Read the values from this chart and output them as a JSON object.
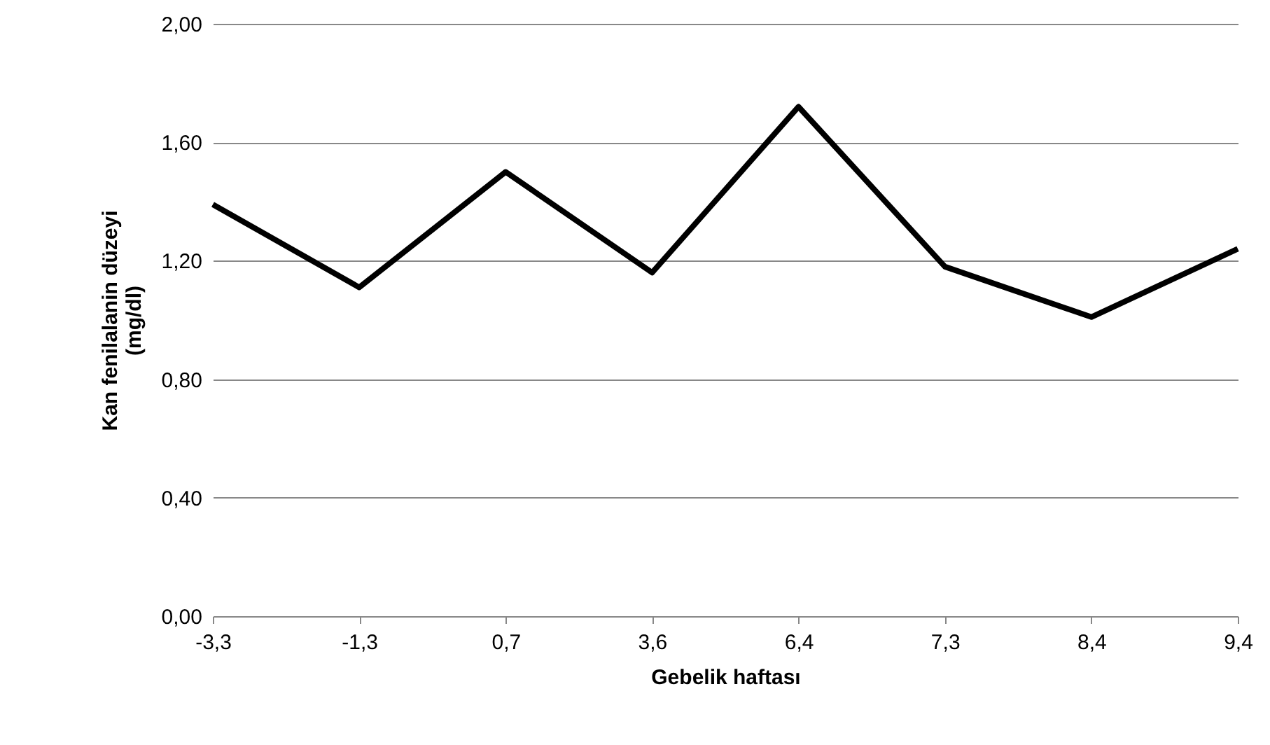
{
  "chart_data": {
    "type": "line",
    "xlabel": "Gebelik haftası",
    "ylabel": "Kan fenilalanin düzeyi\n(mg/dl)",
    "categories": [
      "-3,3",
      "-1,3",
      "0,7",
      "3,6",
      "6,4",
      "7,3",
      "8,4",
      "9,4"
    ],
    "series": [
      {
        "color": "#000000",
        "values": [
          1.39,
          1.11,
          1.5,
          1.16,
          1.72,
          1.18,
          1.01,
          1.24
        ]
      }
    ],
    "ylim": [
      0,
      2
    ],
    "yticks": [
      {
        "value": 0,
        "label": "0,00"
      },
      {
        "value": 0.4,
        "label": "0,40"
      },
      {
        "value": 0.8,
        "label": "0,80"
      },
      {
        "value": 1.2,
        "label": "1,20"
      },
      {
        "value": 1.6,
        "label": "1,60"
      },
      {
        "value": 2,
        "label": "2,00"
      }
    ],
    "grid": "y",
    "marker": "none",
    "line_style": "solid"
  }
}
